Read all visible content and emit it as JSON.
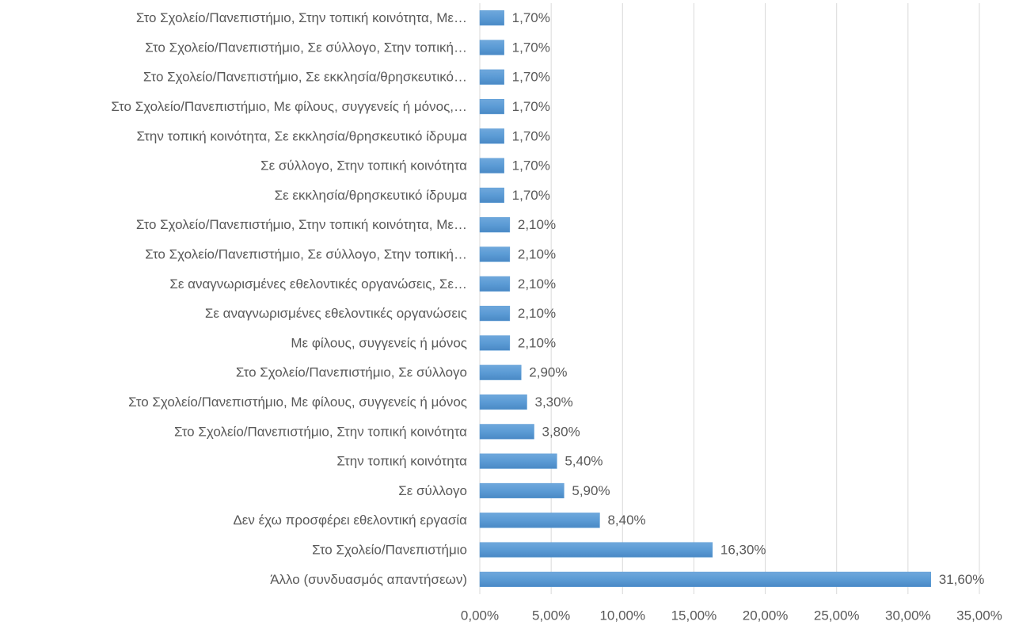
{
  "chart_data": {
    "type": "barh",
    "categories": [
      "Στο Σχολείο/Πανεπιστήμιο, Στην τοπική κοινότητα, Με…",
      "Στο Σχολείο/Πανεπιστήμιο, Σε σύλλογο, Στην τοπική…",
      "Στο Σχολείο/Πανεπιστήμιο, Σε εκκλησία/θρησκευτικό…",
      "Στο Σχολείο/Πανεπιστήμιο, Με φίλους, συγγενείς ή μόνος,…",
      "Στην τοπική κοινότητα, Σε εκκλησία/θρησκευτικό ίδρυμα",
      "Σε σύλλογο, Στην τοπική κοινότητα",
      "Σε εκκλησία/θρησκευτικό ίδρυμα",
      "Στο Σχολείο/Πανεπιστήμιο, Στην τοπική κοινότητα, Με…",
      "Στο Σχολείο/Πανεπιστήμιο, Σε σύλλογο, Στην τοπική…",
      "Σε αναγνωρισμένες εθελοντικές οργανώσεις, Σε…",
      "Σε αναγνωρισμένες εθελοντικές οργανώσεις",
      "Με φίλους, συγγενείς ή μόνος",
      "Στο Σχολείο/Πανεπιστήμιο, Σε σύλλογο",
      "Στο Σχολείο/Πανεπιστήμιο, Με φίλους, συγγενείς ή μόνος",
      "Στο Σχολείο/Πανεπιστήμιο, Στην τοπική κοινότητα",
      "Στην τοπική κοινότητα",
      "Σε σύλλογο",
      "Δεν έχω προσφέρει εθελοντική εργασία",
      "Στο Σχολείο/Πανεπιστήμιο",
      "Άλλο (συνδυασμός απαντήσεων)"
    ],
    "values": [
      1.7,
      1.7,
      1.7,
      1.7,
      1.7,
      1.7,
      1.7,
      2.1,
      2.1,
      2.1,
      2.1,
      2.1,
      2.9,
      3.3,
      3.8,
      5.4,
      5.9,
      8.4,
      16.3,
      31.6
    ],
    "value_labels": [
      "1,70%",
      "1,70%",
      "1,70%",
      "1,70%",
      "1,70%",
      "1,70%",
      "1,70%",
      "2,10%",
      "2,10%",
      "2,10%",
      "2,10%",
      "2,10%",
      "2,90%",
      "3,30%",
      "3,80%",
      "5,40%",
      "5,90%",
      "8,40%",
      "16,30%",
      "31,60%"
    ],
    "color": "#5b9bd5",
    "xlim": [
      0,
      35
    ],
    "xticks": [
      {
        "value": 0,
        "label": "0,00%"
      },
      {
        "value": 5,
        "label": "5,00%"
      },
      {
        "value": 10,
        "label": "10,00%"
      },
      {
        "value": 15,
        "label": "15,00%"
      },
      {
        "value": 20,
        "label": "20,00%"
      },
      {
        "value": 25,
        "label": "25,00%"
      },
      {
        "value": 30,
        "label": "30,00%"
      },
      {
        "value": 35,
        "label": "35,00%"
      }
    ],
    "grid": true
  }
}
